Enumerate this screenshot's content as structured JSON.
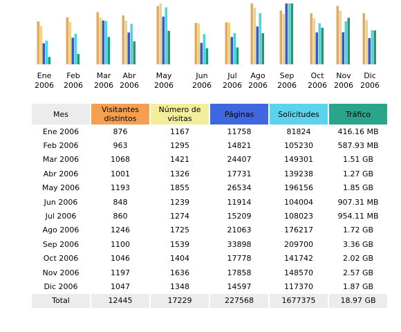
{
  "colors": {
    "visitors": "#e8a85a",
    "visits": "#e8d48c",
    "pages": "#3a56c8",
    "hits": "#4ed3e0",
    "bandwidth": "#1f9a6e"
  },
  "chart_data": {
    "type": "bar",
    "categories": [
      [
        "Ene",
        "2006"
      ],
      [
        "Feb",
        "2006"
      ],
      [
        "Mar",
        "2006"
      ],
      [
        "Abr",
        "2006"
      ],
      [
        "May",
        "2006"
      ],
      [
        "Jun",
        "2006"
      ],
      [
        "Jul",
        "2006"
      ],
      [
        "Ago",
        "2006"
      ],
      [
        "Sep",
        "2006"
      ],
      [
        "Oct",
        "2006"
      ],
      [
        "Nov",
        "2006"
      ],
      [
        "Dic",
        "2006"
      ]
    ],
    "series": [
      {
        "name": "Visitantes distintos",
        "values": [
          876,
          963,
          1068,
          1001,
          1193,
          848,
          860,
          1246,
          1100,
          1046,
          1197,
          1047
        ]
      },
      {
        "name": "Número de visitas",
        "values": [
          1167,
          1295,
          1421,
          1326,
          1855,
          1239,
          1274,
          1725,
          1539,
          1404,
          1636,
          1348
        ]
      },
      {
        "name": "Páginas",
        "values": [
          11758,
          14821,
          24407,
          17731,
          26534,
          11914,
          15209,
          21063,
          33898,
          17778,
          17858,
          14597
        ]
      },
      {
        "name": "Solicitudes",
        "values": [
          81824,
          105230,
          149301,
          139238,
          196156,
          104004,
          108023,
          176217,
          209700,
          141742,
          148570,
          117370
        ]
      },
      {
        "name": "Tráfico",
        "values": [
          416.16,
          587.93,
          1546.2,
          1300.5,
          1894.4,
          907.31,
          954.11,
          1761.3,
          3440.6,
          2068.5,
          2631.7,
          1914.9
        ],
        "unit": "MB"
      }
    ]
  },
  "table": {
    "headers": {
      "month": "Mes",
      "visitors": "Visitantes distintos",
      "visits": "Número de visitas",
      "pages": "Páginas",
      "hits": "Solicitudes",
      "bandwidth": "Tráfico"
    },
    "rows": [
      [
        "Ene 2006",
        "876",
        "1167",
        "11758",
        "81824",
        "416.16 MB"
      ],
      [
        "Feb 2006",
        "963",
        "1295",
        "14821",
        "105230",
        "587.93 MB"
      ],
      [
        "Mar 2006",
        "1068",
        "1421",
        "24407",
        "149301",
        "1.51 GB"
      ],
      [
        "Abr 2006",
        "1001",
        "1326",
        "17731",
        "139238",
        "1.27 GB"
      ],
      [
        "May 2006",
        "1193",
        "1855",
        "26534",
        "196156",
        "1.85 GB"
      ],
      [
        "Jun 2006",
        "848",
        "1239",
        "11914",
        "104004",
        "907.31 MB"
      ],
      [
        "Jul 2006",
        "860",
        "1274",
        "15209",
        "108023",
        "954.11 MB"
      ],
      [
        "Ago 2006",
        "1246",
        "1725",
        "21063",
        "176217",
        "1.72 GB"
      ],
      [
        "Sep 2006",
        "1100",
        "1539",
        "33898",
        "209700",
        "3.36 GB"
      ],
      [
        "Oct 2006",
        "1046",
        "1404",
        "17778",
        "141742",
        "2.02 GB"
      ],
      [
        "Nov 2006",
        "1197",
        "1636",
        "17858",
        "148570",
        "2.57 GB"
      ],
      [
        "Dic 2006",
        "1047",
        "1348",
        "14597",
        "117370",
        "1.87 GB"
      ]
    ],
    "total": [
      "Total",
      "12445",
      "17229",
      "227568",
      "1677375",
      "18.97 GB"
    ]
  }
}
